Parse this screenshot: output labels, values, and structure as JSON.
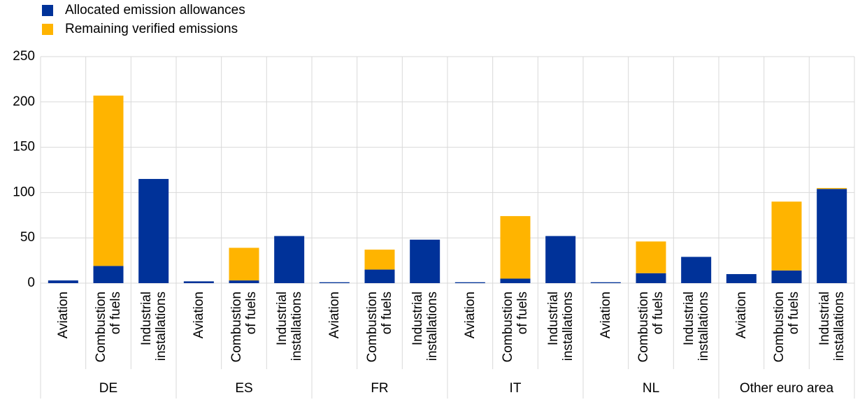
{
  "chart_data": {
    "type": "bar",
    "stacked": true,
    "groups": [
      {
        "name": "DE",
        "categories": [
          "Aviation",
          "Combustion of fuels",
          "Industrial installations"
        ]
      },
      {
        "name": "ES",
        "categories": [
          "Aviation",
          "Combustion of fuels",
          "Industrial installations"
        ]
      },
      {
        "name": "FR",
        "categories": [
          "Aviation",
          "Combustion of fuels",
          "Industrial installations"
        ]
      },
      {
        "name": "IT",
        "categories": [
          "Aviation",
          "Combustion of fuels",
          "Industrial installations"
        ]
      },
      {
        "name": "NL",
        "categories": [
          "Aviation",
          "Combustion of fuels",
          "Industrial installations"
        ]
      },
      {
        "name": "Other euro area",
        "categories": [
          "Aviation",
          "Combustion of fuels",
          "Industrial installations"
        ]
      }
    ],
    "series": [
      {
        "name": "Allocated emission allowances",
        "color": "#003299",
        "values": [
          3,
          19,
          115,
          2,
          3,
          52,
          1,
          15,
          48,
          1,
          5,
          52,
          1,
          11,
          29,
          10,
          14,
          104
        ]
      },
      {
        "name": "Remaining verified emissions",
        "color": "#ffb400",
        "values": [
          0,
          188,
          0,
          0,
          36,
          0,
          0,
          22,
          0,
          0,
          69,
          0,
          0,
          35,
          0,
          0,
          76,
          1
        ]
      }
    ],
    "ylim": [
      0,
      250
    ],
    "yticks": [
      0,
      50,
      100,
      150,
      200,
      250
    ],
    "grid": true
  }
}
